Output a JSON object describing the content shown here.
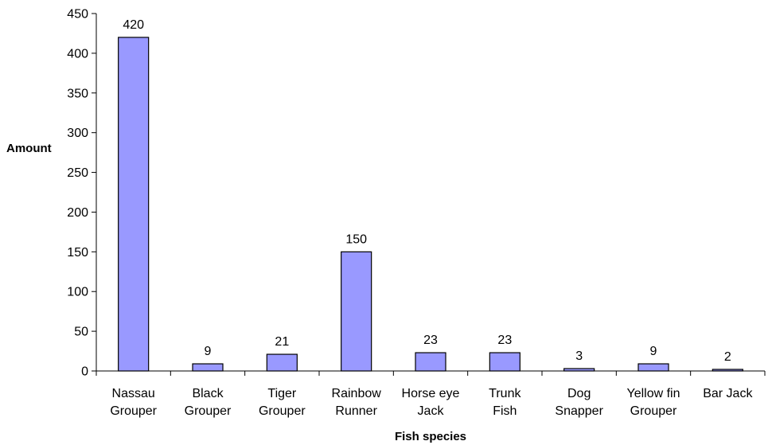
{
  "chart_data": {
    "type": "bar",
    "categories": [
      [
        "Nassau",
        "Grouper"
      ],
      [
        "Black",
        "Grouper"
      ],
      [
        "Tiger",
        "Grouper"
      ],
      [
        "Rainbow",
        "Runner"
      ],
      [
        "Horse eye",
        "Jack"
      ],
      [
        "Trunk",
        "Fish"
      ],
      [
        "Dog",
        "Snapper"
      ],
      [
        "Yellow fin",
        "Grouper"
      ],
      [
        "Bar Jack"
      ]
    ],
    "values": [
      420,
      9,
      21,
      150,
      23,
      23,
      3,
      9,
      2
    ],
    "xlabel": "Fish species",
    "ylabel": "Amount",
    "ylim": [
      0,
      450
    ],
    "yticks": [
      0,
      50,
      100,
      150,
      200,
      250,
      300,
      350,
      400,
      450
    ],
    "grid": false,
    "legend": "none",
    "colors": {
      "bar_fill": "#9999ff",
      "bar_stroke": "#000000",
      "axis": "#000000"
    }
  }
}
